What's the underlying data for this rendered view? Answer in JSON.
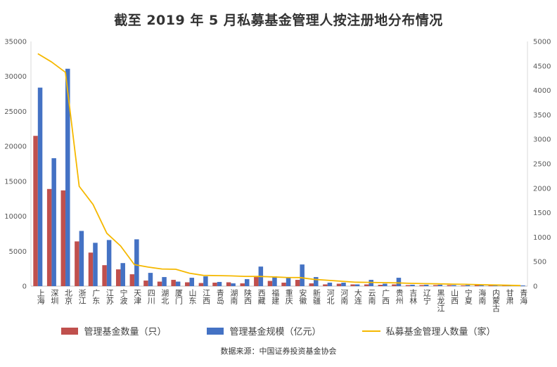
{
  "chart_data": {
    "type": "bar",
    "title": "截至 2019 年 5 月私募基金管理人按注册地分布情况",
    "source": "数据来源：中国证券投资基金协会",
    "categories": [
      "上海",
      "深圳",
      "北京",
      "浙江",
      "广东",
      "江苏",
      "宁波",
      "天津",
      "四川",
      "湖北",
      "厦门",
      "山东",
      "江西",
      "青岛",
      "湖南",
      "陕西",
      "西藏",
      "福建",
      "重庆",
      "安徽",
      "新疆",
      "河北",
      "河南",
      "大连",
      "云南",
      "广西",
      "贵州",
      "吉林",
      "辽宁",
      "黑龙江",
      "山西",
      "宁夏",
      "海南",
      "内蒙古",
      "甘肃",
      "青海"
    ],
    "y_left": {
      "min": 0,
      "max": 35000,
      "ticks": [
        0,
        5000,
        10000,
        15000,
        20000,
        25000,
        30000,
        35000
      ]
    },
    "y_right": {
      "min": 0,
      "max": 5000,
      "ticks": [
        0,
        500,
        1000,
        1500,
        2000,
        2500,
        3000,
        3500,
        4000,
        4500,
        5000
      ]
    },
    "grid": false,
    "legend_position": "bottom",
    "series": [
      {
        "name": "管理基金数量（只）",
        "type": "bar",
        "axis": "left",
        "color": "#C0504D",
        "values": [
          21500,
          13900,
          13700,
          6400,
          4800,
          3000,
          2400,
          1700,
          800,
          650,
          900,
          550,
          450,
          500,
          550,
          400,
          1300,
          750,
          500,
          900,
          400,
          250,
          350,
          250,
          250,
          200,
          250,
          150,
          150,
          150,
          150,
          100,
          150,
          150,
          100,
          100
        ]
      },
      {
        "name": "管理基金规模（亿元）",
        "type": "bar",
        "axis": "left",
        "color": "#4472C4",
        "values": [
          28400,
          18300,
          31100,
          7900,
          6200,
          6600,
          3300,
          6700,
          1900,
          1300,
          650,
          1200,
          1400,
          600,
          400,
          1000,
          2800,
          1400,
          1200,
          3100,
          1300,
          500,
          500,
          250,
          900,
          350,
          1200,
          200,
          200,
          200,
          150,
          150,
          150,
          100,
          100,
          100
        ]
      },
      {
        "name": "私募基金管理人数量（家）",
        "type": "line",
        "axis": "right",
        "color": "#F5B800",
        "values": [
          4750,
          4580,
          4370,
          2040,
          1670,
          1080,
          820,
          440,
          390,
          350,
          345,
          265,
          220,
          215,
          210,
          200,
          198,
          190,
          178,
          175,
          140,
          120,
          100,
          80,
          78,
          72,
          68,
          58,
          52,
          48,
          42,
          38,
          30,
          25,
          18,
          12
        ]
      }
    ]
  }
}
